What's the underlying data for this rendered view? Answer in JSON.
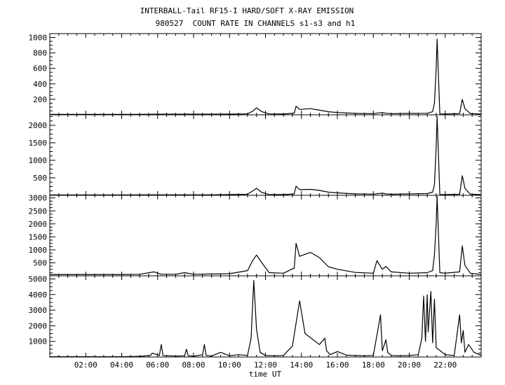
{
  "title_line1": "INTERBALL-Tail RF15-I HARD/SOFT X-RAY EMISSION",
  "title_line2": "980527  COUNT RATE IN CHANNELS s1-s3 and h1",
  "xlabel": "time UT",
  "chart_data": {
    "type": "line",
    "xlabel": "time UT",
    "x_ticks": [
      "02:00",
      "04:00",
      "06:00",
      "08:00",
      "10:00",
      "12:00",
      "14:00",
      "16:00",
      "18:00",
      "20:00",
      "22:00"
    ],
    "xlim_hours": [
      0.0,
      24.0
    ],
    "grid": false,
    "panels": [
      {
        "name": "s1",
        "ylim": [
          0,
          1050
        ],
        "y_ticks": [
          200,
          400,
          600,
          800,
          1000
        ],
        "series": [
          {
            "x": [
              0,
              1,
              2,
              3,
              4,
              5,
              6,
              7,
              8,
              9,
              10,
              11,
              11.3,
              11.5,
              11.8,
              12.2,
              13,
              13.6,
              13.7,
              13.9,
              14.5,
              15,
              15.5,
              16,
              17,
              18,
              18.5,
              18.7,
              19,
              20,
              21,
              21.3,
              21.4,
              21.5,
              21.55,
              21.7,
              22,
              22.8,
              22.95,
              23.1,
              23.4,
              24
            ],
            "y": [
              5,
              5,
              5,
              5,
              5,
              6,
              8,
              8,
              8,
              8,
              9,
              12,
              50,
              90,
              40,
              12,
              10,
              22,
              110,
              70,
              80,
              60,
              40,
              30,
              18,
              15,
              30,
              20,
              15,
              18,
              20,
              40,
              150,
              600,
              980,
              12,
              10,
              15,
              200,
              80,
              15,
              10
            ]
          }
        ]
      },
      {
        "name": "s2",
        "ylim": [
          0,
          2300
        ],
        "y_ticks": [
          500,
          1000,
          1500,
          2000
        ],
        "series": [
          {
            "x": [
              0,
              1,
              2,
              3,
              4,
              5,
              6,
              7,
              8,
              9,
              10,
              11,
              11.3,
              11.5,
              11.8,
              12.2,
              13,
              13.6,
              13.7,
              13.9,
              14.5,
              15,
              15.5,
              16,
              17,
              18,
              18.5,
              18.7,
              19,
              20,
              21,
              21.3,
              21.4,
              21.5,
              21.55,
              21.7,
              22,
              22.8,
              22.95,
              23.1,
              23.4,
              24
            ],
            "y": [
              10,
              10,
              10,
              10,
              10,
              12,
              15,
              15,
              15,
              15,
              20,
              30,
              130,
              200,
              80,
              25,
              20,
              40,
              260,
              160,
              170,
              140,
              90,
              70,
              40,
              35,
              60,
              40,
              30,
              40,
              50,
              90,
              300,
              1400,
              2250,
              25,
              20,
              30,
              560,
              200,
              30,
              20
            ]
          }
        ]
      },
      {
        "name": "s3",
        "ylim": [
          0,
          3100
        ],
        "y_ticks": [
          500,
          1000,
          1500,
          2000,
          2500,
          3000
        ],
        "series": [
          {
            "x": [
              0,
              1,
              2,
              3,
              4,
              5,
              5.8,
              6.2,
              7,
              7.5,
              8,
              9,
              10,
              11,
              11.3,
              11.5,
              11.8,
              12.2,
              13,
              13.6,
              13.7,
              13.9,
              14.5,
              15,
              15.5,
              16,
              17,
              18,
              18.2,
              18.5,
              18.7,
              19,
              20,
              21,
              21.3,
              21.4,
              21.5,
              21.55,
              21.7,
              22,
              22.8,
              22.95,
              23.1,
              23.4,
              24
            ],
            "y": [
              50,
              50,
              50,
              50,
              50,
              60,
              150,
              60,
              60,
              120,
              60,
              70,
              80,
              200,
              600,
              800,
              500,
              120,
              100,
              300,
              1250,
              750,
              900,
              700,
              350,
              250,
              130,
              100,
              580,
              250,
              360,
              150,
              100,
              120,
              200,
              800,
              2000,
              3050,
              120,
              100,
              150,
              1150,
              400,
              100,
              50
            ]
          }
        ]
      },
      {
        "name": "h1",
        "ylim": [
          0,
          5200
        ],
        "y_ticks": [
          1000,
          2000,
          3000,
          4000,
          5000
        ],
        "series": [
          {
            "x": [
              0,
              1,
              2,
              3,
              4,
              5,
              5.6,
              5.7,
              6.1,
              6.2,
              6.3,
              7,
              7.5,
              7.6,
              7.7,
              8,
              8.5,
              8.6,
              8.7,
              9,
              9.5,
              10,
              10.5,
              11,
              11.2,
              11.35,
              11.5,
              11.7,
              12,
              12.5,
              13,
              13.5,
              13.9,
              14.2,
              15,
              15.3,
              15.4,
              15.6,
              16,
              16.5,
              17,
              17.5,
              18,
              18.4,
              18.5,
              18.7,
              18.8,
              19,
              19.5,
              20,
              20.5,
              20.7,
              20.8,
              20.9,
              21.0,
              21.05,
              21.2,
              21.3,
              21.4,
              21.5,
              22,
              22.5,
              22.8,
              22.9,
              23.0,
              23.1,
              23.3,
              23.6,
              24
            ],
            "y": [
              20,
              20,
              20,
              20,
              20,
              40,
              100,
              250,
              100,
              800,
              100,
              60,
              80,
              500,
              80,
              50,
              150,
              800,
              100,
              60,
              300,
              80,
              150,
              100,
              1200,
              4900,
              1800,
              300,
              100,
              80,
              100,
              700,
              3600,
              1500,
              800,
              1200,
              400,
              150,
              350,
              120,
              100,
              80,
              100,
              2700,
              400,
              1100,
              300,
              100,
              80,
              100,
              150,
              1200,
              3900,
              1000,
              4000,
              1600,
              4200,
              900,
              3700,
              600,
              150,
              100,
              2700,
              900,
              1700,
              300,
              800,
              300,
              100
            ]
          }
        ]
      }
    ]
  }
}
